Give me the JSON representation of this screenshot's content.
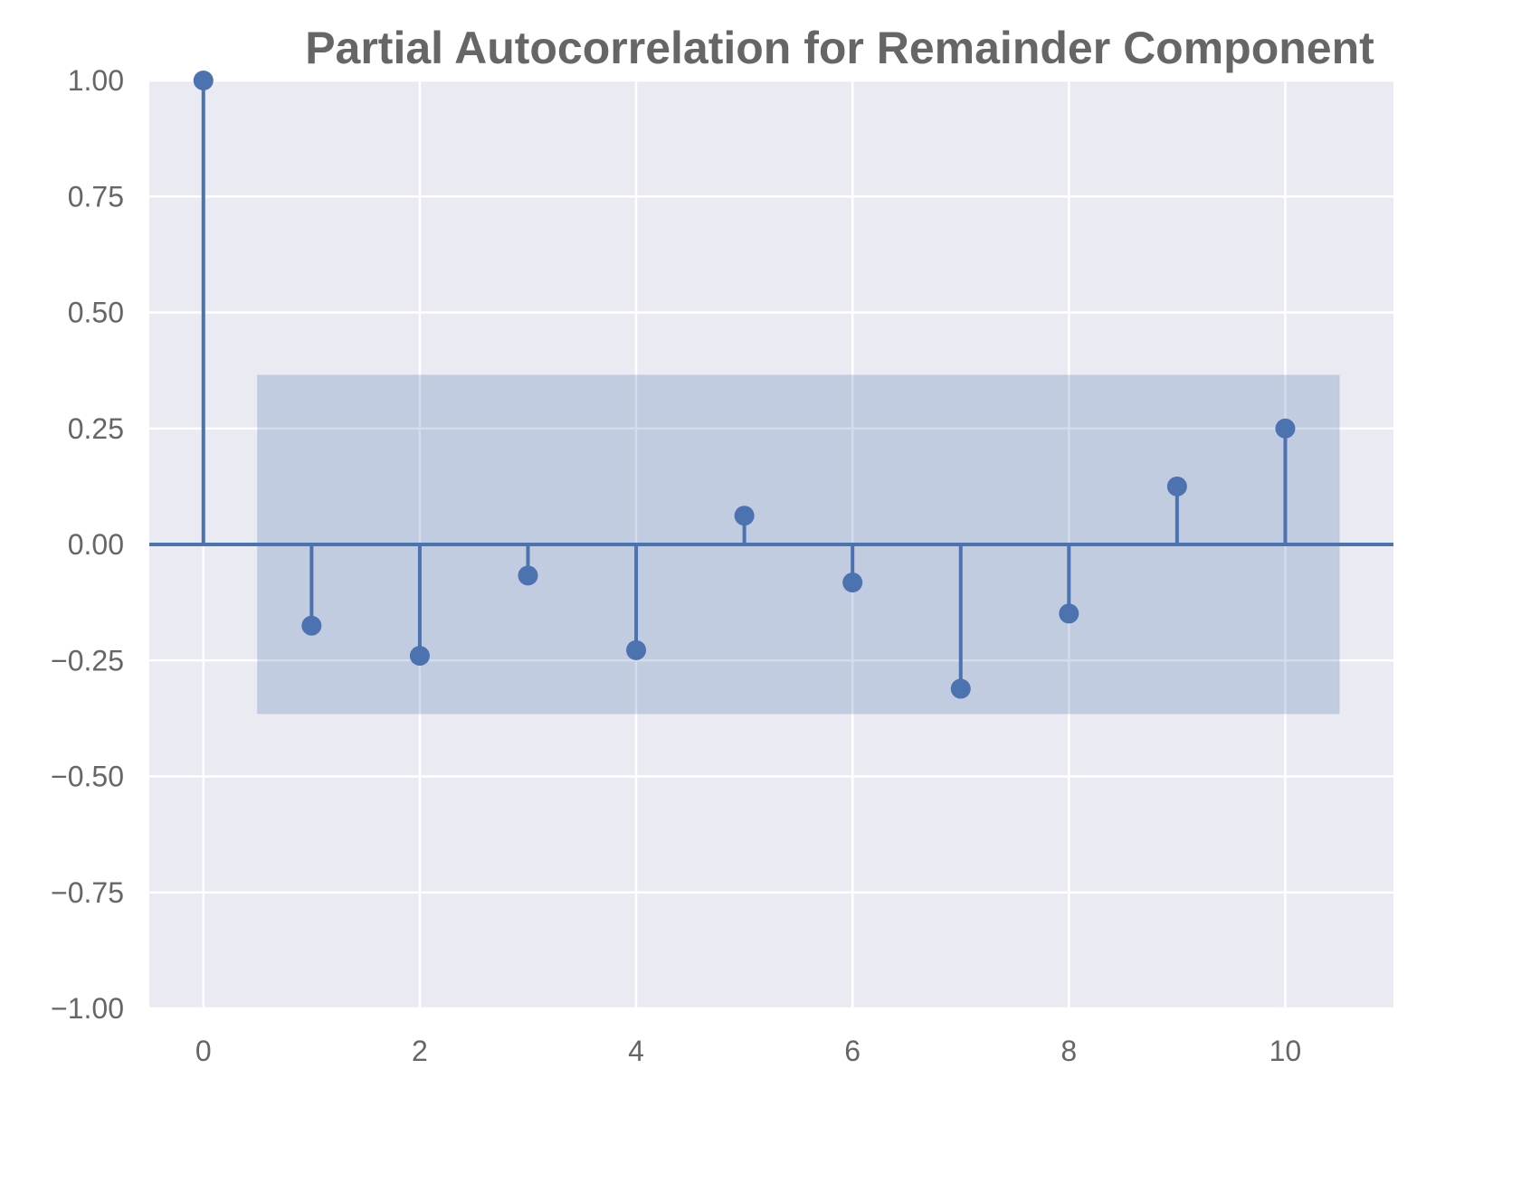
{
  "chart_data": {
    "type": "stem",
    "title": "Partial Autocorrelation for Remainder Component",
    "xlabel": "",
    "ylabel": "",
    "xlim": [
      -0.5,
      11
    ],
    "ylim": [
      -1.0,
      1.0
    ],
    "x_ticks": [
      0,
      2,
      4,
      6,
      8,
      10
    ],
    "x_tick_labels": [
      "0",
      "2",
      "4",
      "6",
      "8",
      "10"
    ],
    "y_ticks": [
      1.0,
      0.75,
      0.5,
      0.25,
      0.0,
      -0.25,
      -0.5,
      -0.75,
      -1.0
    ],
    "y_tick_labels": [
      "1.00",
      "0.75",
      "0.50",
      "0.25",
      "0.00",
      "−0.25",
      "−0.50",
      "−0.75",
      "−1.00"
    ],
    "grid": true,
    "lags": [
      0,
      1,
      2,
      3,
      4,
      5,
      6,
      7,
      8,
      9,
      10
    ],
    "values": [
      1.0,
      -0.175,
      -0.24,
      -0.067,
      -0.228,
      0.062,
      -0.082,
      -0.311,
      -0.149,
      0.125,
      0.25
    ],
    "confidence_band": {
      "x_range": [
        0.5,
        10.5
      ],
      "y_range": [
        -0.365,
        0.365
      ]
    },
    "colors": {
      "series": "#4c72b0",
      "band": "#4c72b0",
      "axes_background": "#eaeaf2",
      "grid": "#ffffff",
      "text": "#666666"
    }
  }
}
